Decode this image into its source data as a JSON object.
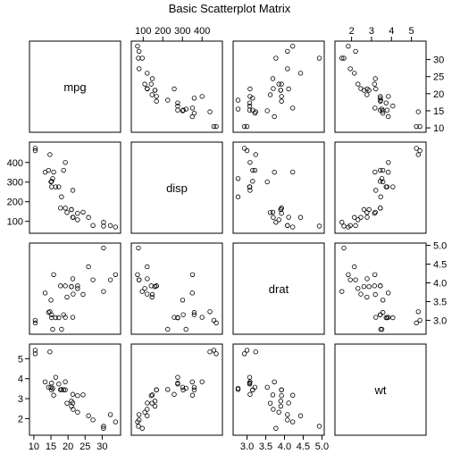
{
  "chart_data": {
    "type": "scatter-matrix",
    "title": "Basic Scatterplot Matrix",
    "variables": [
      "mpg",
      "disp",
      "drat",
      "wt"
    ],
    "axes": {
      "mpg": {
        "ticks": [
          10,
          15,
          20,
          25,
          30
        ],
        "range": [
          9.5,
          34.6
        ]
      },
      "disp": {
        "ticks": [
          100,
          200,
          300,
          400
        ],
        "range": [
          53,
          490
        ]
      },
      "drat": {
        "ticks": [
          3.0,
          3.5,
          4.0,
          4.5,
          5.0
        ],
        "range": [
          2.7,
          4.99
        ]
      },
      "wt": {
        "ticks": [
          2,
          3,
          4,
          5
        ],
        "range": [
          1.3,
          5.6
        ]
      }
    },
    "tick_labels": {
      "top": [
        {
          "var": "disp",
          "ticks": [
            "100",
            "200",
            "300",
            "400"
          ]
        },
        {
          "var": "wt",
          "ticks": [
            "2",
            "3",
            "4",
            "5"
          ]
        }
      ],
      "right": [
        {
          "var": "mpg",
          "ticks": [
            "10",
            "15",
            "20",
            "25",
            "30"
          ]
        },
        {
          "var": "drat",
          "ticks": [
            "3.0",
            "3.5",
            "4.0",
            "4.5",
            "5.0"
          ]
        }
      ],
      "bottom": [
        {
          "var": "mpg",
          "ticks": [
            "10",
            "15",
            "20",
            "25",
            "30"
          ]
        },
        {
          "var": "drat",
          "ticks": [
            "3.0",
            "3.5",
            "4.0",
            "4.5",
            "5.0"
          ]
        }
      ],
      "left": [
        {
          "var": "disp",
          "ticks": [
            "100",
            "200",
            "300",
            "400"
          ]
        },
        {
          "var": "wt",
          "ticks": [
            "2",
            "3",
            "4",
            "5"
          ]
        }
      ]
    },
    "observations": [
      {
        "mpg": 21.0,
        "disp": 160.0,
        "drat": 3.9,
        "wt": 2.62
      },
      {
        "mpg": 21.0,
        "disp": 160.0,
        "drat": 3.9,
        "wt": 2.875
      },
      {
        "mpg": 22.8,
        "disp": 108.0,
        "drat": 3.85,
        "wt": 2.32
      },
      {
        "mpg": 21.4,
        "disp": 258.0,
        "drat": 3.08,
        "wt": 3.215
      },
      {
        "mpg": 18.7,
        "disp": 360.0,
        "drat": 3.15,
        "wt": 3.44
      },
      {
        "mpg": 18.1,
        "disp": 225.0,
        "drat": 2.76,
        "wt": 3.46
      },
      {
        "mpg": 14.3,
        "disp": 360.0,
        "drat": 3.21,
        "wt": 3.57
      },
      {
        "mpg": 24.4,
        "disp": 146.7,
        "drat": 3.69,
        "wt": 3.19
      },
      {
        "mpg": 22.8,
        "disp": 140.8,
        "drat": 3.92,
        "wt": 3.15
      },
      {
        "mpg": 19.2,
        "disp": 167.6,
        "drat": 3.92,
        "wt": 3.44
      },
      {
        "mpg": 17.8,
        "disp": 167.6,
        "drat": 3.92,
        "wt": 3.44
      },
      {
        "mpg": 16.4,
        "disp": 275.8,
        "drat": 3.07,
        "wt": 4.07
      },
      {
        "mpg": 17.3,
        "disp": 275.8,
        "drat": 3.07,
        "wt": 3.73
      },
      {
        "mpg": 15.2,
        "disp": 275.8,
        "drat": 3.07,
        "wt": 3.78
      },
      {
        "mpg": 10.4,
        "disp": 472.0,
        "drat": 2.93,
        "wt": 5.25
      },
      {
        "mpg": 10.4,
        "disp": 460.0,
        "drat": 3.0,
        "wt": 5.424
      },
      {
        "mpg": 14.7,
        "disp": 440.0,
        "drat": 3.23,
        "wt": 5.345
      },
      {
        "mpg": 32.4,
        "disp": 78.7,
        "drat": 4.08,
        "wt": 2.2
      },
      {
        "mpg": 30.4,
        "disp": 75.7,
        "drat": 4.93,
        "wt": 1.615
      },
      {
        "mpg": 33.9,
        "disp": 71.1,
        "drat": 4.22,
        "wt": 1.835
      },
      {
        "mpg": 21.5,
        "disp": 120.1,
        "drat": 3.7,
        "wt": 2.465
      },
      {
        "mpg": 15.5,
        "disp": 318.0,
        "drat": 2.76,
        "wt": 3.52
      },
      {
        "mpg": 15.2,
        "disp": 304.0,
        "drat": 3.15,
        "wt": 3.435
      },
      {
        "mpg": 13.3,
        "disp": 350.0,
        "drat": 3.73,
        "wt": 3.84
      },
      {
        "mpg": 19.2,
        "disp": 400.0,
        "drat": 3.08,
        "wt": 3.845
      },
      {
        "mpg": 27.3,
        "disp": 79.0,
        "drat": 4.08,
        "wt": 1.935
      },
      {
        "mpg": 26.0,
        "disp": 120.3,
        "drat": 4.43,
        "wt": 2.14
      },
      {
        "mpg": 30.4,
        "disp": 95.1,
        "drat": 3.77,
        "wt": 1.513
      },
      {
        "mpg": 15.8,
        "disp": 351.0,
        "drat": 4.22,
        "wt": 3.17
      },
      {
        "mpg": 19.7,
        "disp": 145.0,
        "drat": 3.62,
        "wt": 2.77
      },
      {
        "mpg": 15.0,
        "disp": 301.0,
        "drat": 3.54,
        "wt": 3.57
      },
      {
        "mpg": 21.4,
        "disp": 121.0,
        "drat": 4.11,
        "wt": 2.78
      }
    ],
    "marker": "open-circle",
    "grid": false,
    "colors": {
      "stroke": "#000000",
      "background": "#ffffff"
    }
  }
}
